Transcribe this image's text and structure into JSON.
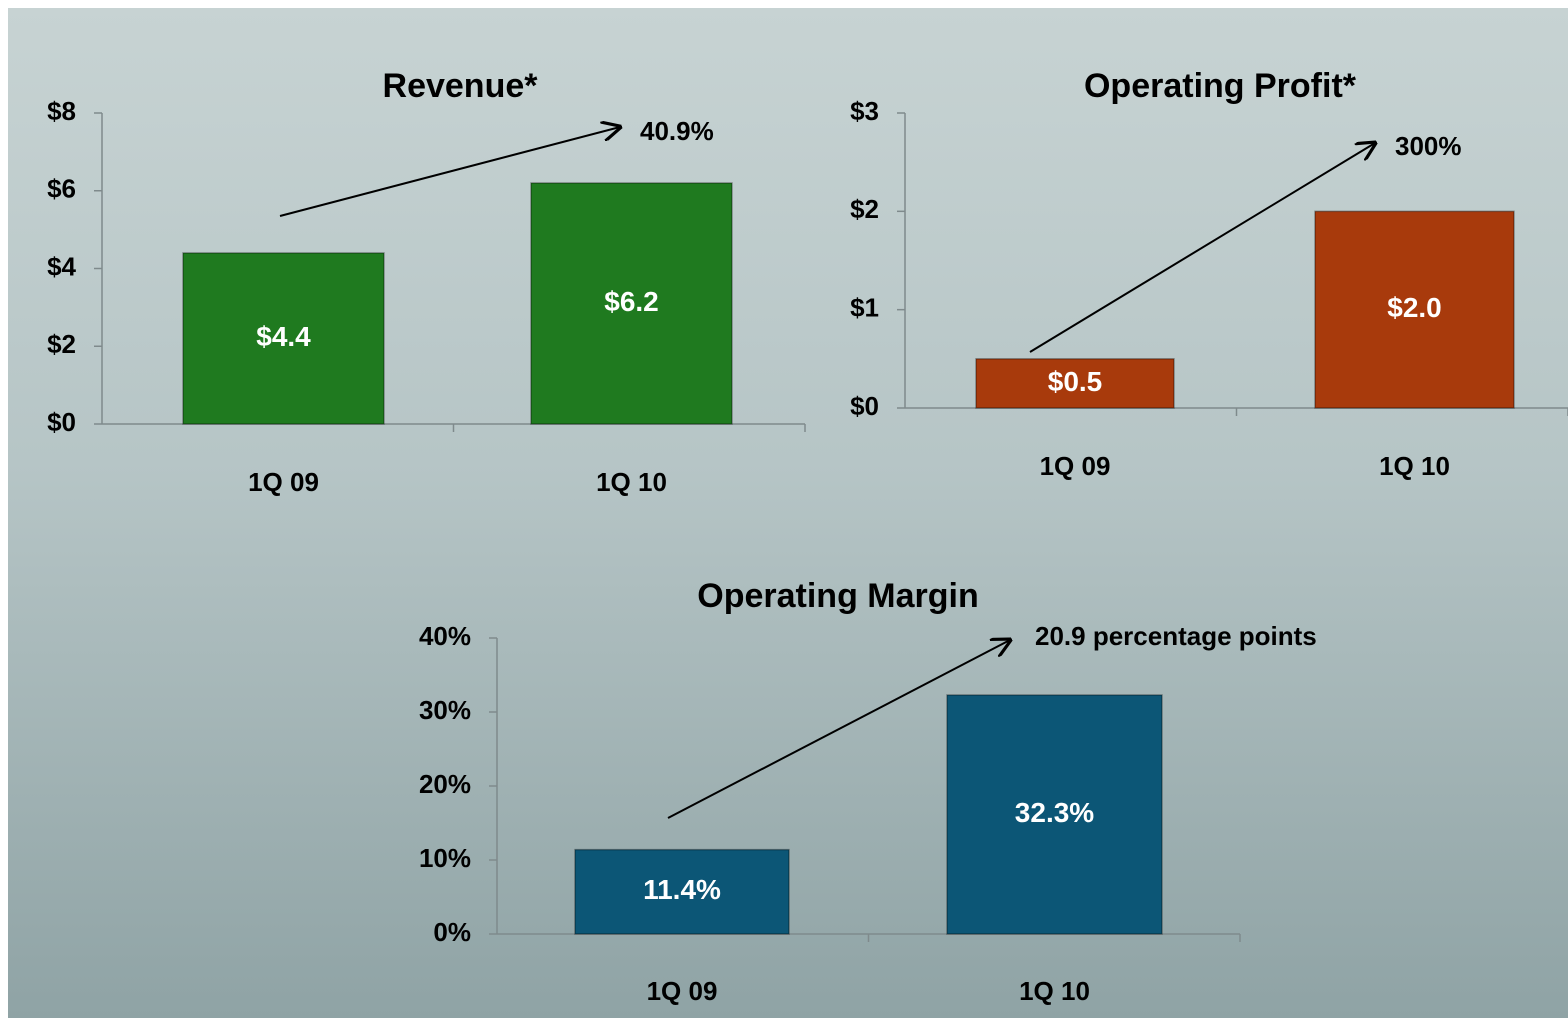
{
  "chart_data": [
    {
      "type": "bar",
      "title": "Revenue*",
      "annotation": "40.9%",
      "categories": [
        "1Q 09",
        "1Q 10"
      ],
      "values": [
        4.4,
        6.2
      ],
      "value_labels": [
        "$4.4",
        "$6.2"
      ],
      "color": "#1f7a1f",
      "ylim": [
        0,
        8
      ],
      "yticks": [
        {
          "value": 0,
          "label": "$0"
        },
        {
          "value": 2,
          "label": "$2"
        },
        {
          "value": 4,
          "label": "$4"
        },
        {
          "value": 6,
          "label": "$6"
        },
        {
          "value": 8,
          "label": "$8"
        }
      ]
    },
    {
      "type": "bar",
      "title": "Operating Profit*",
      "annotation": "300%",
      "categories": [
        "1Q 09",
        "1Q 10"
      ],
      "values": [
        0.5,
        2.0
      ],
      "value_labels": [
        "$0.5",
        "$2.0"
      ],
      "color": "#a83a0c",
      "ylim": [
        0,
        3
      ],
      "yticks": [
        {
          "value": 0,
          "label": "$0"
        },
        {
          "value": 1,
          "label": "$1"
        },
        {
          "value": 2,
          "label": "$2"
        },
        {
          "value": 3,
          "label": "$3"
        }
      ]
    },
    {
      "type": "bar",
      "title": "Operating Margin",
      "annotation": "20.9 percentage points",
      "categories": [
        "1Q 09",
        "1Q 10"
      ],
      "values": [
        11.4,
        32.3
      ],
      "value_labels": [
        "11.4%",
        "32.3%"
      ],
      "color": "#0c5676",
      "ylim": [
        0,
        40
      ],
      "yticks": [
        {
          "value": 0,
          "label": "0%"
        },
        {
          "value": 10,
          "label": "10%"
        },
        {
          "value": 20,
          "label": "20%"
        },
        {
          "value": 30,
          "label": "30%"
        },
        {
          "value": 40,
          "label": "40%"
        }
      ]
    }
  ]
}
